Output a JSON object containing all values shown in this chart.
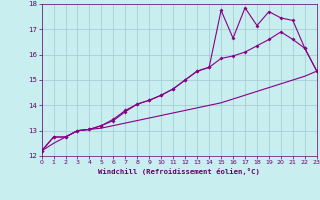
{
  "xlabel": "Windchill (Refroidissement éolien,°C)",
  "bg_color": "#c8eef0",
  "grid_color": "#a0c8d0",
  "line_color": "#880088",
  "xmin": 0,
  "xmax": 23,
  "ymin": 12,
  "ymax": 18,
  "line1_x": [
    0,
    1,
    2,
    3,
    4,
    5,
    6,
    7,
    8,
    9,
    10,
    11,
    12,
    13,
    14,
    15,
    16,
    17,
    18,
    19,
    20,
    21,
    22,
    23
  ],
  "line1_y": [
    12.2,
    12.75,
    12.75,
    13.0,
    13.05,
    13.2,
    13.45,
    13.8,
    14.05,
    14.2,
    14.4,
    14.65,
    15.0,
    15.35,
    15.5,
    15.85,
    15.95,
    16.1,
    16.35,
    16.6,
    16.9,
    16.6,
    16.25,
    15.35
  ],
  "line2_x": [
    0,
    1,
    2,
    3,
    4,
    5,
    6,
    7,
    8,
    9,
    10,
    11,
    12,
    13,
    14,
    15,
    16,
    17,
    18,
    19,
    20,
    21,
    22,
    23
  ],
  "line2_y": [
    12.2,
    12.75,
    12.75,
    13.0,
    13.05,
    13.2,
    13.4,
    13.75,
    14.05,
    14.2,
    14.4,
    14.65,
    15.0,
    15.35,
    15.5,
    17.75,
    16.65,
    17.85,
    17.15,
    17.7,
    17.45,
    17.35,
    16.25,
    15.35
  ],
  "line3_x": [
    0,
    1,
    2,
    3,
    4,
    5,
    6,
    7,
    8,
    9,
    10,
    11,
    12,
    13,
    14,
    15,
    16,
    17,
    18,
    19,
    20,
    21,
    22,
    23
  ],
  "line3_y": [
    12.2,
    12.5,
    12.75,
    13.0,
    13.05,
    13.1,
    13.2,
    13.3,
    13.4,
    13.5,
    13.6,
    13.7,
    13.8,
    13.9,
    14.0,
    14.1,
    14.25,
    14.4,
    14.55,
    14.7,
    14.85,
    15.0,
    15.15,
    15.35
  ],
  "yticks": [
    12,
    13,
    14,
    15,
    16,
    17,
    18
  ],
  "xticks": [
    0,
    1,
    2,
    3,
    4,
    5,
    6,
    7,
    8,
    9,
    10,
    11,
    12,
    13,
    14,
    15,
    16,
    17,
    18,
    19,
    20,
    21,
    22,
    23
  ]
}
